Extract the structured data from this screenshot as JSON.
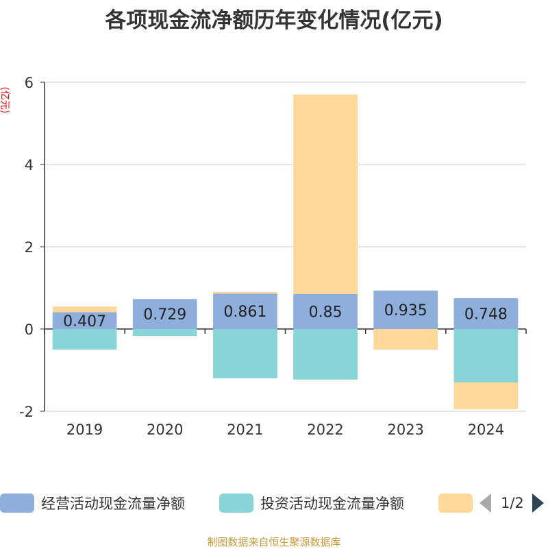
{
  "chart_data": {
    "type": "bar",
    "stacked": true,
    "title": "各项现金流净额历年变化情况(亿元)",
    "ylabel": "(亿元)",
    "categories": [
      "2019",
      "2020",
      "2021",
      "2022",
      "2023",
      "2024"
    ],
    "ylim": [
      -2,
      6
    ],
    "yticks": [
      -2,
      0,
      2,
      4,
      6
    ],
    "grid": true,
    "series": [
      {
        "name": "经营活动现金流量净额",
        "color": "#8eaedc",
        "values": [
          0.407,
          0.729,
          0.861,
          0.85,
          0.935,
          0.748
        ],
        "labels": [
          "0.407",
          "0.729",
          "0.861",
          "0.85",
          "0.935",
          "0.748"
        ]
      },
      {
        "name": "投资活动现金流量净额",
        "color": "#88d5d8",
        "values": [
          -0.5,
          -0.17,
          -1.2,
          -1.23,
          0.0,
          -1.3
        ]
      },
      {
        "color": "#fdd899",
        "values": [
          0.14,
          0.0,
          0.04,
          4.85,
          -0.5,
          -0.65
        ]
      }
    ],
    "legend_position": "bottom"
  },
  "legend": {
    "page_text": "1/2"
  },
  "source": "制图数据来自恒生聚源数据库"
}
